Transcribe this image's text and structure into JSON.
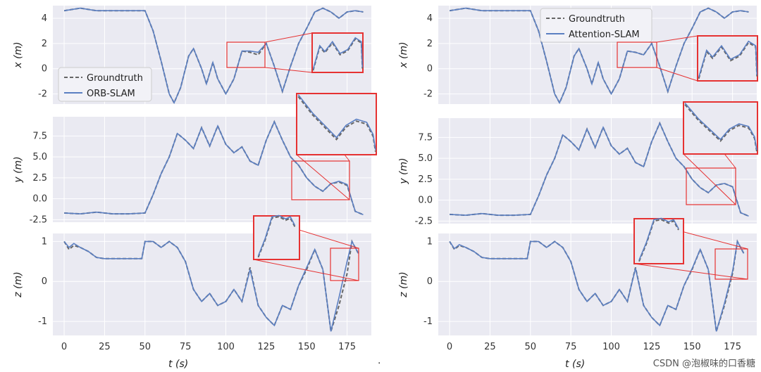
{
  "watermark": "CSDN @泡椒味的口香糖",
  "separator": ".",
  "colors": {
    "panel_bg": "#eaeaf2",
    "grid": "#ffffff",
    "estimate": "#5b7fc2",
    "groundtruth": "#666666",
    "zoom_box": "#e63232"
  },
  "chart_data": [
    {
      "type": "line",
      "title": "",
      "xlabel": "t (s)",
      "xlim": [
        -7,
        190
      ],
      "xticks": [
        0,
        25,
        50,
        75,
        100,
        125,
        150,
        175
      ],
      "grid": true,
      "legend_position": "left",
      "panels": [
        {
          "ylabel": "x (m)",
          "ylim": [
            -2.8,
            5.0
          ],
          "yticks": [
            -2,
            0,
            2,
            4
          ],
          "x": [
            0,
            5,
            10,
            15,
            20,
            25,
            30,
            40,
            50,
            55,
            60,
            65,
            68,
            72,
            77,
            80,
            85,
            88,
            92,
            95,
            100,
            105,
            110,
            115,
            120,
            125,
            130,
            135,
            140,
            145,
            150,
            155,
            160,
            165,
            170,
            175,
            180,
            185
          ],
          "series": [
            {
              "name": "Groundtruth",
              "style": "dashed",
              "values": [
                4.6,
                4.7,
                4.8,
                4.7,
                4.6,
                4.6,
                4.6,
                4.6,
                4.6,
                3.0,
                0.6,
                -2.0,
                -2.7,
                -1.5,
                1.0,
                1.6,
                0.0,
                -1.2,
                0.5,
                -0.8,
                -2.0,
                -0.8,
                1.4,
                1.3,
                1.1,
                2.0,
                0.2,
                -1.8,
                0.2,
                2.0,
                3.2,
                4.5,
                4.8,
                4.5,
                4.0,
                4.5,
                4.6,
                4.5
              ]
            },
            {
              "name": "ORB-SLAM",
              "style": "solid",
              "values": [
                4.6,
                4.7,
                4.8,
                4.7,
                4.6,
                4.6,
                4.6,
                4.6,
                4.6,
                3.0,
                0.6,
                -2.0,
                -2.7,
                -1.5,
                1.0,
                1.6,
                0.0,
                -1.2,
                0.5,
                -0.8,
                -2.0,
                -0.8,
                1.4,
                1.4,
                1.3,
                2.0,
                0.2,
                -1.8,
                0.2,
                2.0,
                3.2,
                4.5,
                4.8,
                4.5,
                4.0,
                4.5,
                4.6,
                4.5
              ]
            }
          ]
        },
        {
          "ylabel": "y (m)",
          "ylim": [
            -2.8,
            9.8
          ],
          "yticks": [
            -2.5,
            0.0,
            2.5,
            5.0,
            7.5
          ],
          "x": [
            0,
            10,
            20,
            30,
            40,
            50,
            55,
            60,
            65,
            70,
            75,
            80,
            85,
            90,
            95,
            100,
            105,
            110,
            115,
            120,
            125,
            130,
            135,
            140,
            145,
            150,
            155,
            160,
            165,
            170,
            175,
            180,
            185
          ],
          "series": [
            {
              "name": "Groundtruth",
              "style": "dashed",
              "values": [
                -1.7,
                -1.8,
                -1.6,
                -1.8,
                -1.8,
                -1.7,
                0.5,
                3.0,
                5.0,
                7.8,
                7.0,
                6.0,
                8.5,
                6.3,
                8.7,
                6.5,
                5.5,
                6.2,
                4.5,
                4.0,
                7.0,
                9.2,
                7.0,
                5.0,
                4.0,
                2.5,
                1.5,
                0.9,
                1.8,
                2.0,
                1.6,
                -1.5,
                -1.9
              ]
            },
            {
              "name": "ORB-SLAM",
              "style": "solid",
              "values": [
                -1.7,
                -1.8,
                -1.6,
                -1.8,
                -1.8,
                -1.7,
                0.5,
                3.0,
                5.0,
                7.8,
                7.0,
                6.0,
                8.5,
                6.3,
                8.7,
                6.5,
                5.5,
                6.2,
                4.5,
                4.0,
                7.0,
                9.2,
                7.0,
                5.0,
                4.0,
                2.5,
                1.5,
                0.9,
                1.8,
                2.1,
                1.7,
                -1.5,
                -1.9
              ]
            }
          ]
        },
        {
          "ylabel": "z (m)",
          "ylim": [
            -1.35,
            1.2
          ],
          "yticks": [
            -1,
            0,
            1
          ],
          "x": [
            0,
            3,
            6,
            10,
            15,
            20,
            25,
            30,
            40,
            48,
            50,
            55,
            60,
            65,
            70,
            75,
            80,
            85,
            90,
            95,
            100,
            105,
            110,
            115,
            120,
            125,
            130,
            135,
            140,
            145,
            150,
            155,
            160,
            165,
            170,
            175,
            178,
            182
          ],
          "series": [
            {
              "name": "Groundtruth",
              "style": "dashed",
              "values": [
                1.0,
                0.8,
                0.9,
                0.85,
                0.75,
                0.6,
                0.57,
                0.57,
                0.57,
                0.57,
                1.0,
                1.0,
                0.85,
                1.0,
                0.85,
                0.5,
                -0.2,
                -0.5,
                -0.3,
                -0.6,
                -0.5,
                -0.2,
                -0.5,
                0.35,
                -0.6,
                -0.9,
                -1.1,
                -0.6,
                -0.7,
                -0.1,
                0.3,
                0.8,
                0.3,
                -1.25,
                -0.6,
                0.2,
                1.0,
                0.7
              ]
            },
            {
              "name": "ORB-SLAM",
              "style": "solid",
              "values": [
                1.0,
                0.85,
                0.95,
                0.85,
                0.75,
                0.6,
                0.57,
                0.57,
                0.57,
                0.57,
                1.0,
                1.0,
                0.85,
                1.0,
                0.85,
                0.5,
                -0.2,
                -0.5,
                -0.3,
                -0.6,
                -0.5,
                -0.2,
                -0.5,
                0.3,
                -0.6,
                -0.9,
                -1.1,
                -0.6,
                -0.7,
                -0.1,
                0.35,
                0.8,
                0.3,
                -1.25,
                -0.4,
                0.5,
                1.0,
                0.7
              ]
            }
          ]
        }
      ]
    },
    {
      "type": "line",
      "title": "",
      "xlabel": "t (s)",
      "xlim": [
        -7,
        190
      ],
      "xticks": [
        0,
        25,
        50,
        75,
        100,
        125,
        150,
        175
      ],
      "grid": true,
      "legend_position": "top",
      "panels": [
        {
          "ylabel": "x (m)",
          "ylim": [
            -2.8,
            5.0
          ],
          "yticks": [
            -2,
            0,
            2,
            4
          ],
          "x": [
            0,
            5,
            10,
            15,
            20,
            25,
            30,
            40,
            50,
            55,
            60,
            65,
            68,
            72,
            77,
            80,
            85,
            88,
            92,
            95,
            100,
            105,
            110,
            115,
            120,
            125,
            130,
            135,
            140,
            145,
            150,
            155,
            160,
            165,
            170,
            175,
            180,
            185
          ],
          "series": [
            {
              "name": "Groundtruth",
              "style": "dashed",
              "values": [
                4.6,
                4.7,
                4.8,
                4.7,
                4.6,
                4.6,
                4.6,
                4.6,
                4.6,
                3.0,
                0.6,
                -2.0,
                -2.7,
                -1.5,
                1.0,
                1.6,
                0.0,
                -1.2,
                0.5,
                -0.8,
                -2.0,
                -0.8,
                1.4,
                1.3,
                1.1,
                2.0,
                0.2,
                -1.8,
                0.2,
                2.0,
                3.2,
                4.5,
                4.8,
                4.5,
                4.0,
                4.5,
                4.6,
                4.5
              ]
            },
            {
              "name": "Attention-SLAM",
              "style": "solid",
              "values": [
                4.6,
                4.7,
                4.8,
                4.7,
                4.6,
                4.6,
                4.6,
                4.6,
                4.6,
                3.0,
                0.6,
                -2.0,
                -2.7,
                -1.5,
                1.0,
                1.6,
                0.0,
                -1.2,
                0.5,
                -0.8,
                -2.0,
                -0.8,
                1.4,
                1.3,
                1.1,
                2.0,
                0.2,
                -1.8,
                0.2,
                2.0,
                3.2,
                4.5,
                4.8,
                4.5,
                4.0,
                4.5,
                4.6,
                4.5
              ]
            }
          ]
        },
        {
          "ylabel": "y (m)",
          "ylim": [
            -2.8,
            9.8
          ],
          "yticks": [
            -2.5,
            0.0,
            2.5,
            5.0,
            7.5
          ],
          "x": [
            0,
            10,
            20,
            30,
            40,
            50,
            55,
            60,
            65,
            70,
            75,
            80,
            85,
            90,
            95,
            100,
            105,
            110,
            115,
            120,
            125,
            130,
            135,
            140,
            145,
            150,
            155,
            160,
            165,
            170,
            175,
            180,
            185
          ],
          "series": [
            {
              "name": "Groundtruth",
              "style": "dashed",
              "values": [
                -1.7,
                -1.8,
                -1.6,
                -1.8,
                -1.8,
                -1.7,
                0.5,
                3.0,
                5.0,
                7.8,
                7.0,
                6.0,
                8.5,
                6.3,
                8.7,
                6.5,
                5.5,
                6.2,
                4.5,
                4.0,
                7.0,
                9.2,
                7.0,
                5.0,
                4.0,
                2.5,
                1.5,
                0.9,
                1.8,
                2.0,
                1.6,
                -1.5,
                -1.9
              ]
            },
            {
              "name": "Attention-SLAM",
              "style": "solid",
              "values": [
                -1.7,
                -1.8,
                -1.6,
                -1.8,
                -1.8,
                -1.7,
                0.5,
                3.0,
                5.0,
                7.8,
                7.0,
                6.0,
                8.5,
                6.3,
                8.7,
                6.5,
                5.5,
                6.2,
                4.5,
                4.0,
                7.0,
                9.2,
                7.0,
                5.0,
                4.0,
                2.5,
                1.5,
                0.9,
                1.8,
                2.0,
                1.6,
                -1.5,
                -1.9
              ]
            }
          ]
        },
        {
          "ylabel": "z (m)",
          "ylim": [
            -1.35,
            1.2
          ],
          "yticks": [
            -1,
            0,
            1
          ],
          "x": [
            0,
            3,
            6,
            10,
            15,
            20,
            25,
            30,
            40,
            48,
            50,
            55,
            60,
            65,
            70,
            75,
            80,
            85,
            90,
            95,
            100,
            105,
            110,
            115,
            120,
            125,
            130,
            135,
            140,
            145,
            150,
            155,
            160,
            165,
            170,
            175,
            178,
            182
          ],
          "series": [
            {
              "name": "Groundtruth",
              "style": "dashed",
              "values": [
                1.0,
                0.8,
                0.9,
                0.85,
                0.75,
                0.6,
                0.57,
                0.57,
                0.57,
                0.57,
                1.0,
                1.0,
                0.85,
                1.0,
                0.85,
                0.5,
                -0.2,
                -0.5,
                -0.3,
                -0.6,
                -0.5,
                -0.2,
                -0.5,
                0.35,
                -0.6,
                -0.9,
                -1.1,
                -0.6,
                -0.7,
                -0.1,
                0.3,
                0.8,
                0.3,
                -1.25,
                -0.6,
                0.2,
                1.0,
                0.7
              ]
            },
            {
              "name": "Attention-SLAM",
              "style": "solid",
              "values": [
                1.0,
                0.82,
                0.92,
                0.85,
                0.75,
                0.6,
                0.57,
                0.57,
                0.57,
                0.57,
                1.0,
                1.0,
                0.85,
                1.0,
                0.85,
                0.5,
                -0.2,
                -0.5,
                -0.3,
                -0.6,
                -0.5,
                -0.2,
                -0.5,
                0.33,
                -0.6,
                -0.9,
                -1.1,
                -0.6,
                -0.7,
                -0.1,
                0.32,
                0.8,
                0.3,
                -1.25,
                -0.55,
                0.25,
                1.0,
                0.7
              ]
            }
          ]
        }
      ]
    }
  ]
}
